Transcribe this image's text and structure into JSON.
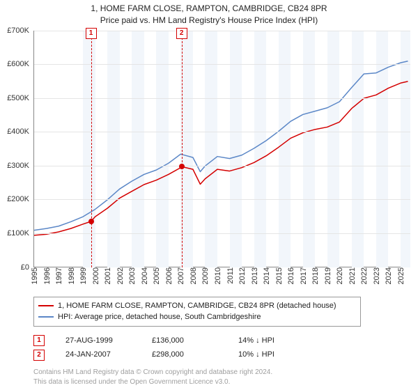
{
  "title": {
    "line1": "1, HOME FARM CLOSE, RAMPTON, CAMBRIDGE, CB24 8PR",
    "line2": "Price paid vs. HM Land Registry's House Price Index (HPI)"
  },
  "chart": {
    "type": "line",
    "background_color": "#ffffff",
    "grid_color": "#e5e5e5",
    "axis_color": "#888888",
    "xlim": [
      1995,
      2025.8
    ],
    "ylim": [
      0,
      700000
    ],
    "ytick_step": 100000,
    "ytick_labels": [
      "£0",
      "£100K",
      "£200K",
      "£300K",
      "£400K",
      "£500K",
      "£600K",
      "£700K"
    ],
    "xtick_years": [
      1995,
      1996,
      1997,
      1998,
      1999,
      2000,
      2001,
      2002,
      2003,
      2004,
      2005,
      2006,
      2007,
      2008,
      2009,
      2010,
      2011,
      2012,
      2013,
      2014,
      2015,
      2016,
      2017,
      2018,
      2019,
      2020,
      2021,
      2022,
      2023,
      2024,
      2025
    ],
    "bands_start_years": [
      1999,
      2001,
      2003,
      2005,
      2007,
      2009,
      2011,
      2013,
      2015,
      2017,
      2019,
      2021,
      2023,
      2025
    ],
    "label_fontsize": 11,
    "series": [
      {
        "id": "price_paid",
        "label": "1, HOME FARM CLOSE, RAMPTON, CAMBRIDGE, CB24 8PR (detached house)",
        "color": "#d40000",
        "line_width": 1.5,
        "x": [
          1995,
          1996,
          1997,
          1998,
          1999,
          1999.65,
          2000,
          2001,
          2002,
          2003,
          2004,
          2005,
          2006,
          2007,
          2007.07,
          2008,
          2008.6,
          2009,
          2010,
          2011,
          2012,
          2013,
          2014,
          2015,
          2016,
          2017,
          2018,
          2019,
          2020,
          2021,
          2022,
          2023,
          2024,
          2025,
          2025.6
        ],
        "y": [
          95000,
          98000,
          105000,
          115000,
          128000,
          136000,
          150000,
          175000,
          205000,
          225000,
          245000,
          258000,
          275000,
          295000,
          298000,
          290000,
          246000,
          262000,
          290000,
          285000,
          295000,
          310000,
          330000,
          355000,
          382000,
          398000,
          408000,
          415000,
          430000,
          470000,
          500000,
          510000,
          530000,
          545000,
          550000
        ]
      },
      {
        "id": "hpi",
        "label": "HPI: Average price, detached house, South Cambridgeshire",
        "color": "#5b87c7",
        "line_width": 1.5,
        "x": [
          1995,
          1996,
          1997,
          1998,
          1999,
          2000,
          2001,
          2002,
          2003,
          2004,
          2005,
          2006,
          2007,
          2008,
          2008.6,
          2009,
          2010,
          2011,
          2012,
          2013,
          2014,
          2015,
          2016,
          2017,
          2018,
          2019,
          2020,
          2021,
          2022,
          2023,
          2024,
          2025,
          2025.6
        ],
        "y": [
          110000,
          115000,
          122000,
          135000,
          150000,
          172000,
          200000,
          232000,
          255000,
          275000,
          288000,
          308000,
          335000,
          325000,
          283000,
          300000,
          328000,
          322000,
          332000,
          352000,
          375000,
          402000,
          432000,
          452000,
          462000,
          472000,
          490000,
          532000,
          572000,
          575000,
          592000,
          605000,
          610000
        ]
      }
    ],
    "events": [
      {
        "n": "1",
        "year": 1999.65,
        "y": 136000
      },
      {
        "n": "2",
        "year": 2007.07,
        "y": 298000
      }
    ]
  },
  "legend": {
    "items": [
      {
        "color": "#d40000",
        "label": "1, HOME FARM CLOSE, RAMPTON, CAMBRIDGE, CB24 8PR (detached house)"
      },
      {
        "color": "#5b87c7",
        "label": "HPI: Average price, detached house, South Cambridgeshire"
      }
    ]
  },
  "events_table": [
    {
      "n": "1",
      "date": "27-AUG-1999",
      "price": "£136,000",
      "delta": "14% ↓ HPI"
    },
    {
      "n": "2",
      "date": "24-JAN-2007",
      "price": "£298,000",
      "delta": "10% ↓ HPI"
    }
  ],
  "footer": {
    "line1": "Contains HM Land Registry data © Crown copyright and database right 2024.",
    "line2": "This data is licensed under the Open Government Licence v3.0."
  }
}
